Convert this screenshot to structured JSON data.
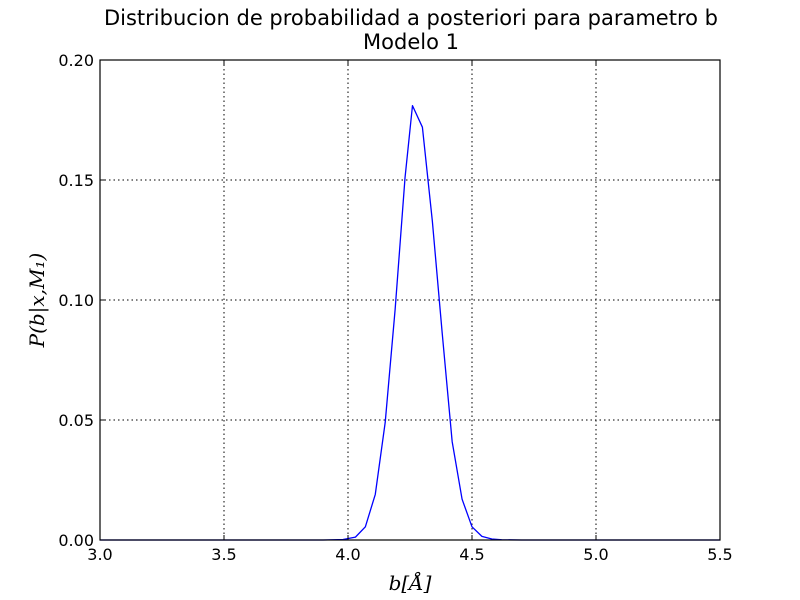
{
  "chart_data": {
    "type": "line",
    "title": "Distribucion de probabilidad a posteriori para parametro b",
    "subtitle": "Modelo 1",
    "xlabel": "b[Å]",
    "ylabel": "P(b|x,M₁)",
    "xlim": [
      3.0,
      5.5
    ],
    "ylim": [
      0.0,
      0.2
    ],
    "x_ticks": [
      "3.0",
      "3.5",
      "4.0",
      "4.5",
      "5.0",
      "5.5"
    ],
    "y_ticks": [
      "0.00",
      "0.05",
      "0.10",
      "0.15",
      "0.20"
    ],
    "grid": true,
    "series_color": "#0000ff",
    "series": [
      {
        "x": [
          3.0,
          3.5,
          3.9,
          3.98,
          4.03,
          4.07,
          4.11,
          4.15,
          4.19,
          4.23,
          4.26,
          4.3,
          4.34,
          4.38,
          4.42,
          4.46,
          4.5,
          4.54,
          4.58,
          4.62,
          4.7,
          5.0,
          5.5
        ],
        "y": [
          0.0,
          0.0,
          0.0,
          0.0002,
          0.0012,
          0.0055,
          0.019,
          0.049,
          0.096,
          0.151,
          0.181,
          0.172,
          0.133,
          0.086,
          0.041,
          0.017,
          0.0055,
          0.0015,
          0.0004,
          0.0001,
          0.0,
          0.0,
          0.0
        ]
      }
    ]
  }
}
